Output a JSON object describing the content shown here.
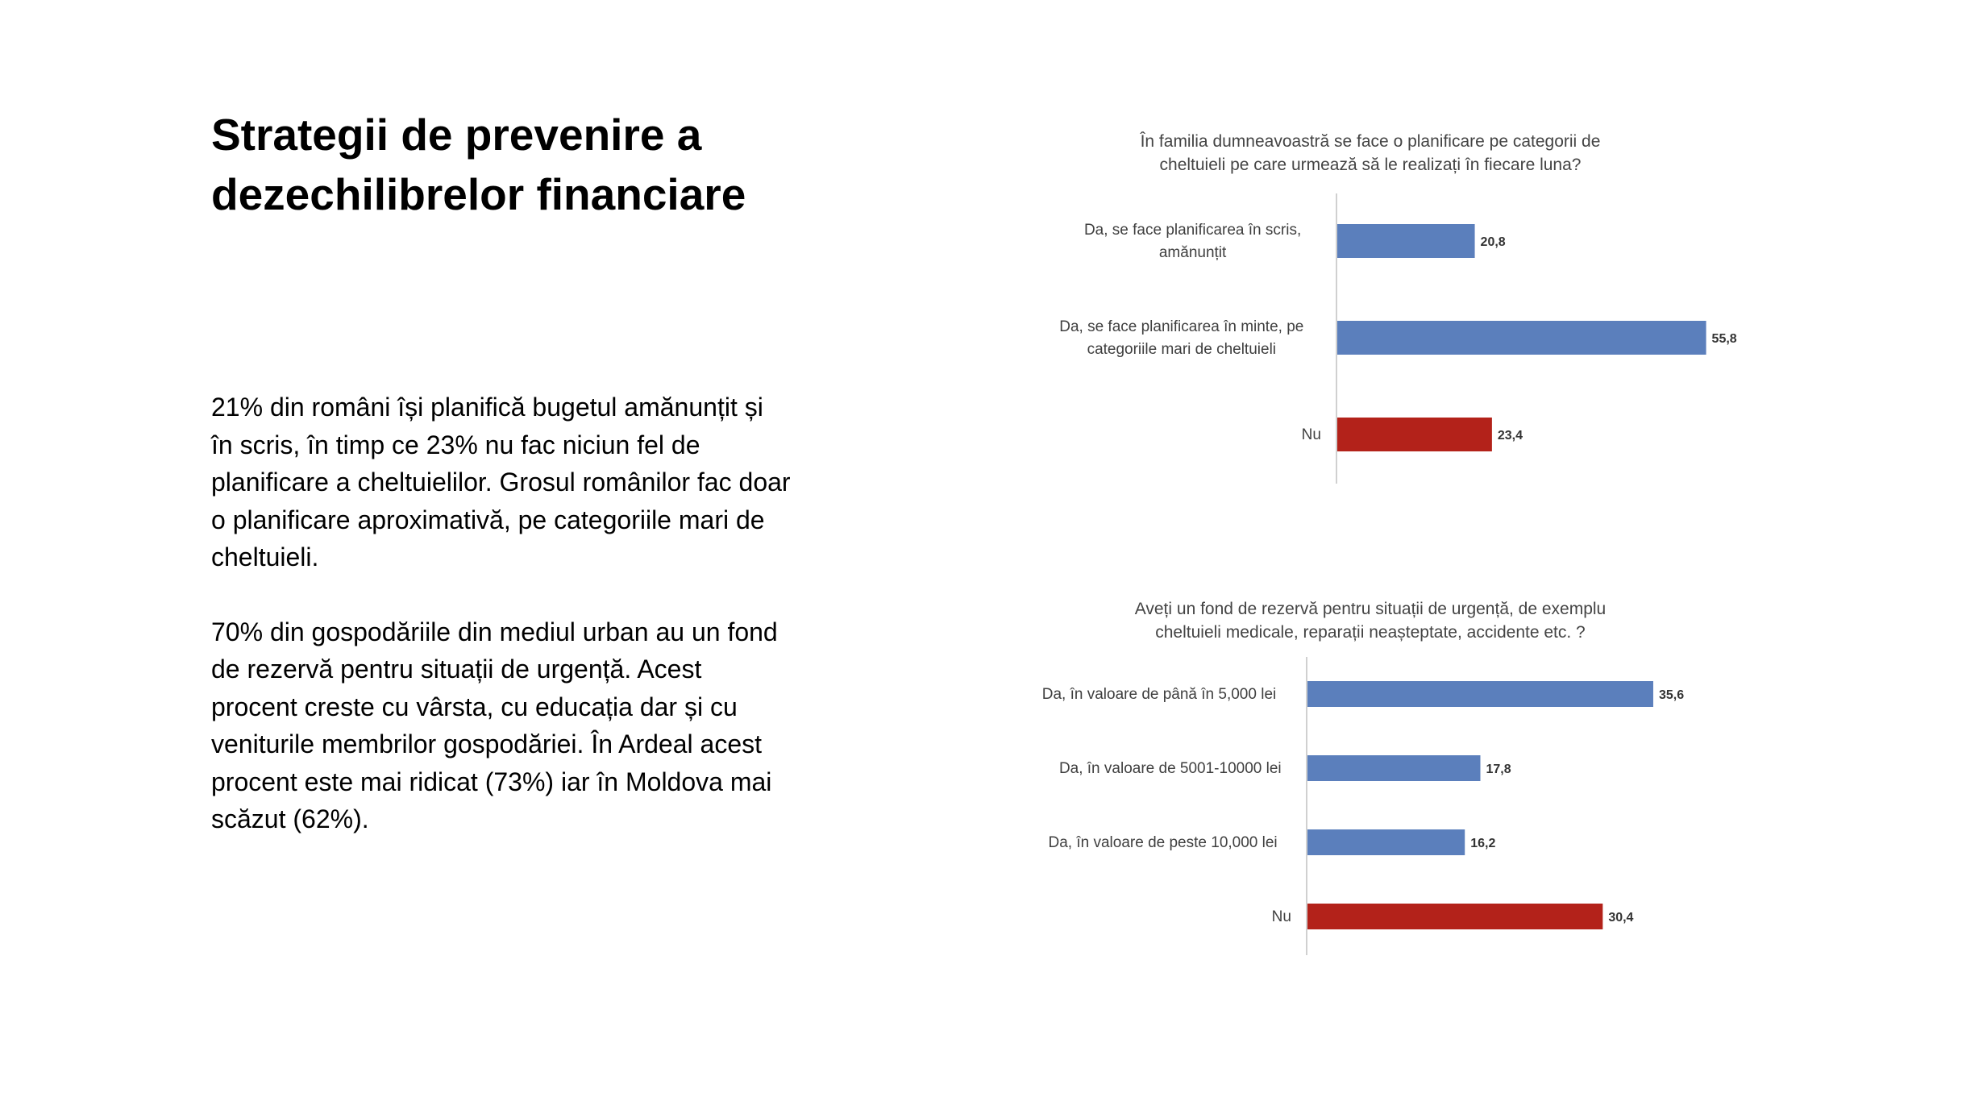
{
  "slide": {
    "title_line1": "Strategii de prevenire a",
    "title_line2": "dezechilibrelor financiare",
    "paragraph1": "21% din români își planifică bugetul amănunțit și în scris, în timp ce 23% nu fac niciun fel de planificare a cheltuielilor. Grosul românilor fac doar o planificare aproximativă, pe categoriile mari de cheltuieli.",
    "paragraph2": "70% din gospodăriile din mediul urban au un fond de rezervă pentru situații de urgență. Acest procent creste cu vârsta, cu educația dar și cu veniturile membrilor gospodăriei. În Ardeal acest procent este mai ridicat (73%) iar în Moldova mai scăzut (62%)."
  },
  "chart_data": [
    {
      "type": "bar",
      "orientation": "horizontal",
      "title_line1": "În familia dumneavoastră se face o planificare pe categorii de",
      "title_line2": "cheltuieli pe care urmează să le realizați în fiecare luna?",
      "categories": [
        [
          "Da, se face planificarea în scris,",
          "amănunțit"
        ],
        [
          "Da, se face planificarea în minte, pe",
          "categoriile mari de cheltuieli"
        ],
        [
          "Nu"
        ]
      ],
      "values": [
        20.8,
        55.8,
        23.4
      ],
      "value_labels": [
        "20,8",
        "55,8",
        "23,4"
      ],
      "colors": [
        "#5b7fbc",
        "#5b7fbc",
        "#b3221a"
      ],
      "xlim": [
        0,
        60
      ],
      "grid": false,
      "legend": false
    },
    {
      "type": "bar",
      "orientation": "horizontal",
      "title_line1": "Aveți un fond de rezervă pentru situații de urgență, de exemplu",
      "title_line2": "cheltuieli medicale, reparații neașteptate, accidente etc. ?",
      "categories": [
        [
          "Da, în valoare de până în 5,000 lei"
        ],
        [
          "Da, în valoare de 5001-10000 lei"
        ],
        [
          "Da, în valoare de peste 10,000 lei"
        ],
        [
          "Nu"
        ]
      ],
      "values": [
        35.6,
        17.8,
        16.2,
        30.4
      ],
      "value_labels": [
        "35,6",
        "17,8",
        "16,2",
        "30,4"
      ],
      "colors": [
        "#5b7fbc",
        "#5b7fbc",
        "#5b7fbc",
        "#b3221a"
      ],
      "xlim": [
        0,
        40
      ],
      "grid": false,
      "legend": false
    }
  ]
}
